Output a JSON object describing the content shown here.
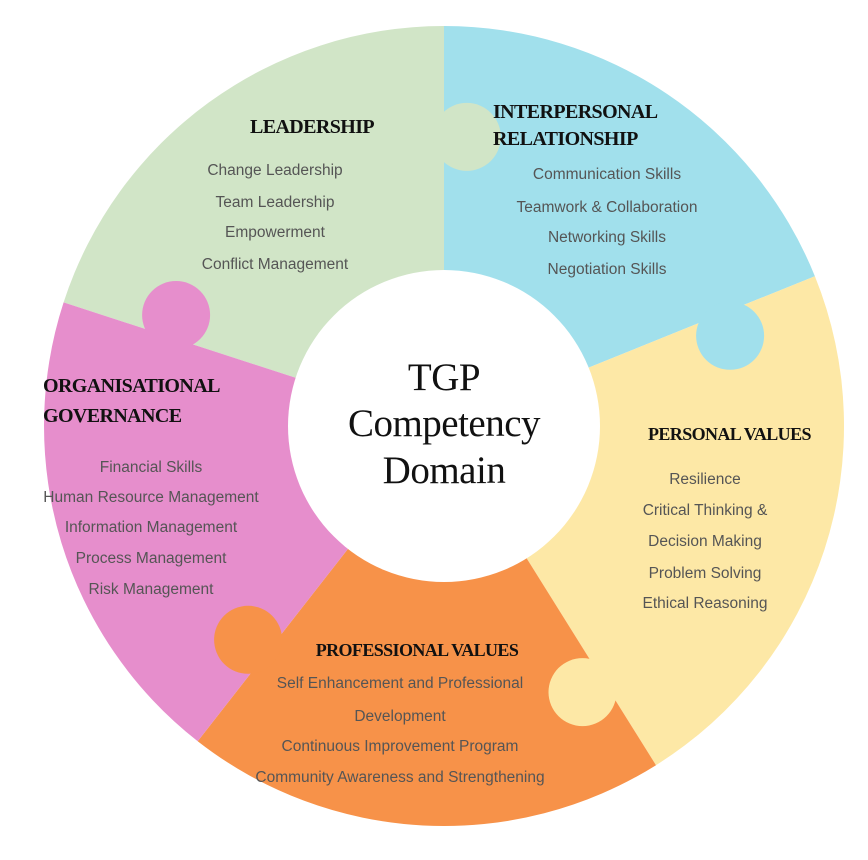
{
  "center": {
    "line1": "TGP",
    "line2": "Competency",
    "line3": "Domain"
  },
  "segments": {
    "leadership": {
      "color": "#d1e5c7",
      "title": "LEADERSHIP",
      "items": [
        "Change Leadership",
        "Team Leadership",
        "Empowerment",
        "Conflict Management"
      ]
    },
    "interpersonal": {
      "color": "#a1e0ec",
      "title_line1": "INTERPERSONAL",
      "title_line2": "RELATIONSHIP",
      "items": [
        "Communication Skills",
        "Teamwork & Collaboration",
        "Networking Skills",
        "Negotiation Skills"
      ]
    },
    "personal_values": {
      "color": "#fde8a6",
      "title": "PERSONAL VALUES",
      "items": [
        "Resilience",
        "Critical Thinking &",
        "Decision Making",
        "Problem Solving",
        "Ethical Reasoning"
      ]
    },
    "professional_values": {
      "color": "#f79249",
      "title": "PROFESSIONAL VALUES",
      "items": [
        "Self Enhancement and Professional",
        "Development",
        "Continuous Improvement Program",
        "Community Awareness and Strengthening"
      ]
    },
    "organisational_governance": {
      "color": "#e68ecc",
      "title_line1": "ORGANISATIONAL",
      "title_line2": "GOVERNANCE",
      "items": [
        "Financial Skills",
        "Human Resource Management",
        "Information Management",
        "Process Management",
        "Risk Management"
      ]
    }
  }
}
